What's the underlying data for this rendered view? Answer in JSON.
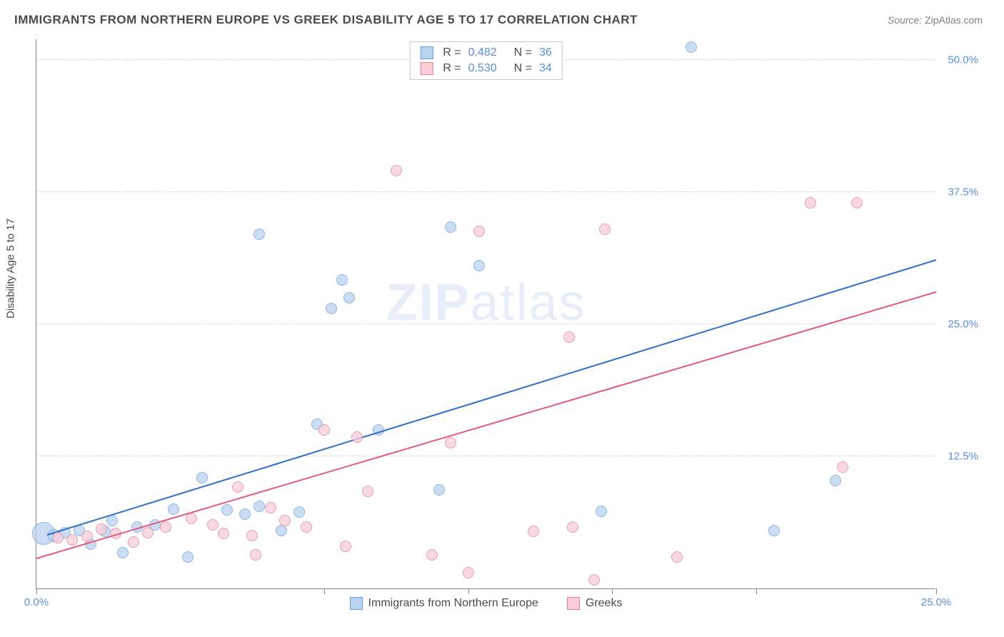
{
  "title": "IMMIGRANTS FROM NORTHERN EUROPE VS GREEK DISABILITY AGE 5 TO 17 CORRELATION CHART",
  "source_label": "Source:",
  "source_name": "ZipAtlas.com",
  "watermark": "ZIPatlas",
  "y_axis_title": "Disability Age 5 to 17",
  "chart": {
    "type": "scatter",
    "xlim": [
      0,
      25
    ],
    "ylim": [
      0,
      52
    ],
    "x_ticks": [
      0,
      8,
      12,
      16,
      20,
      25
    ],
    "x_tick_labels": {
      "0": "0.0%",
      "25": "25.0%"
    },
    "y_gridlines": [
      12.5,
      25.0,
      37.5,
      50.0
    ],
    "y_tick_labels": [
      "12.5%",
      "25.0%",
      "37.5%",
      "50.0%"
    ],
    "background_color": "#ffffff",
    "grid_color": "#d8d8d8",
    "axis_color": "#888888",
    "label_color": "#5b8fd6",
    "series": [
      {
        "name": "Immigrants from Northern Europe",
        "fill": "#b9d2ef",
        "stroke": "#6a9fd8",
        "trend_color": "#2f6fc7",
        "R": "0.482",
        "N": "36",
        "trend": {
          "x1": 0.3,
          "y1": 5.0,
          "x2": 25.0,
          "y2": 31.0
        },
        "points": [
          {
            "x": 0.2,
            "y": 5.2,
            "r": 16
          },
          {
            "x": 0.5,
            "y": 5.0,
            "r": 9
          },
          {
            "x": 0.8,
            "y": 5.3,
            "r": 8
          },
          {
            "x": 1.2,
            "y": 5.5,
            "r": 8
          },
          {
            "x": 1.5,
            "y": 4.2,
            "r": 8
          },
          {
            "x": 1.9,
            "y": 5.4,
            "r": 8
          },
          {
            "x": 2.1,
            "y": 6.4,
            "r": 8
          },
          {
            "x": 2.4,
            "y": 3.4,
            "r": 8
          },
          {
            "x": 2.8,
            "y": 5.8,
            "r": 8
          },
          {
            "x": 3.3,
            "y": 6.0,
            "r": 8
          },
          {
            "x": 3.8,
            "y": 7.5,
            "r": 8
          },
          {
            "x": 4.2,
            "y": 3.0,
            "r": 8
          },
          {
            "x": 4.6,
            "y": 10.5,
            "r": 8
          },
          {
            "x": 5.3,
            "y": 7.4,
            "r": 8
          },
          {
            "x": 5.8,
            "y": 7.0,
            "r": 8
          },
          {
            "x": 6.2,
            "y": 7.8,
            "r": 8
          },
          {
            "x": 6.8,
            "y": 5.5,
            "r": 8
          },
          {
            "x": 7.3,
            "y": 7.2,
            "r": 8
          },
          {
            "x": 7.8,
            "y": 15.5,
            "r": 8
          },
          {
            "x": 8.2,
            "y": 26.5,
            "r": 8
          },
          {
            "x": 8.5,
            "y": 29.2,
            "r": 8
          },
          {
            "x": 8.7,
            "y": 27.5,
            "r": 8
          },
          {
            "x": 9.5,
            "y": 15.0,
            "r": 8
          },
          {
            "x": 6.2,
            "y": 33.5,
            "r": 8
          },
          {
            "x": 11.2,
            "y": 9.3,
            "r": 8
          },
          {
            "x": 11.5,
            "y": 34.2,
            "r": 8
          },
          {
            "x": 12.3,
            "y": 30.5,
            "r": 8
          },
          {
            "x": 15.7,
            "y": 7.3,
            "r": 8
          },
          {
            "x": 18.2,
            "y": 51.2,
            "r": 8
          },
          {
            "x": 20.5,
            "y": 5.5,
            "r": 8
          },
          {
            "x": 22.2,
            "y": 10.2,
            "r": 8
          }
        ]
      },
      {
        "name": "Greeks",
        "fill": "#f6cdd8",
        "stroke": "#e07d9a",
        "trend_color": "#e15a7f",
        "R": "0.530",
        "N": "34",
        "trend": {
          "x1": 0.0,
          "y1": 2.8,
          "x2": 25.0,
          "y2": 28.0
        },
        "points": [
          {
            "x": 0.6,
            "y": 4.8,
            "r": 8
          },
          {
            "x": 1.0,
            "y": 4.6,
            "r": 8
          },
          {
            "x": 1.4,
            "y": 4.9,
            "r": 8
          },
          {
            "x": 1.8,
            "y": 5.6,
            "r": 8
          },
          {
            "x": 2.2,
            "y": 5.2,
            "r": 8
          },
          {
            "x": 2.7,
            "y": 4.4,
            "r": 8
          },
          {
            "x": 3.1,
            "y": 5.3,
            "r": 8
          },
          {
            "x": 3.6,
            "y": 5.8,
            "r": 8
          },
          {
            "x": 4.3,
            "y": 6.6,
            "r": 8
          },
          {
            "x": 4.9,
            "y": 6.0,
            "r": 8
          },
          {
            "x": 5.2,
            "y": 5.2,
            "r": 8
          },
          {
            "x": 5.6,
            "y": 9.6,
            "r": 8
          },
          {
            "x": 6.0,
            "y": 5.0,
            "r": 8
          },
          {
            "x": 6.1,
            "y": 3.2,
            "r": 8
          },
          {
            "x": 6.5,
            "y": 7.6,
            "r": 8
          },
          {
            "x": 6.9,
            "y": 6.4,
            "r": 8
          },
          {
            "x": 7.5,
            "y": 5.8,
            "r": 8
          },
          {
            "x": 8.0,
            "y": 15.0,
            "r": 8
          },
          {
            "x": 8.6,
            "y": 4.0,
            "r": 8
          },
          {
            "x": 8.9,
            "y": 14.3,
            "r": 8
          },
          {
            "x": 9.2,
            "y": 9.2,
            "r": 8
          },
          {
            "x": 10.0,
            "y": 39.5,
            "r": 8
          },
          {
            "x": 11.0,
            "y": 3.2,
            "r": 8
          },
          {
            "x": 11.5,
            "y": 13.8,
            "r": 8
          },
          {
            "x": 12.0,
            "y": 1.5,
            "r": 8
          },
          {
            "x": 12.3,
            "y": 33.8,
            "r": 8
          },
          {
            "x": 13.8,
            "y": 5.4,
            "r": 8
          },
          {
            "x": 14.8,
            "y": 23.8,
            "r": 8
          },
          {
            "x": 14.9,
            "y": 5.8,
            "r": 8
          },
          {
            "x": 15.5,
            "y": 0.8,
            "r": 8
          },
          {
            "x": 15.8,
            "y": 34.0,
            "r": 8
          },
          {
            "x": 17.8,
            "y": 3.0,
            "r": 8
          },
          {
            "x": 21.5,
            "y": 36.5,
            "r": 8
          },
          {
            "x": 22.4,
            "y": 11.5,
            "r": 8
          },
          {
            "x": 22.8,
            "y": 36.5,
            "r": 8
          }
        ]
      }
    ]
  }
}
